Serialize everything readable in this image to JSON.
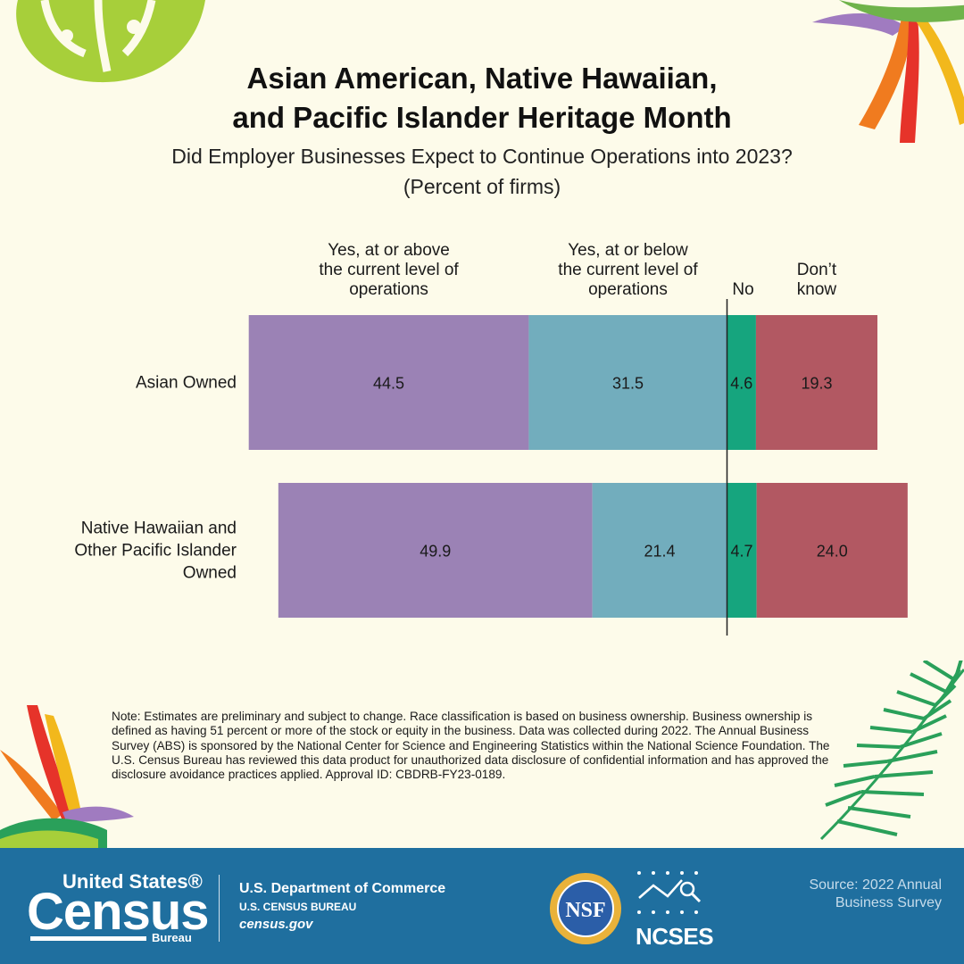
{
  "title": {
    "line1": "Asian American, Native Hawaiian,",
    "line2": "and Pacific Islander Heritage Month"
  },
  "subtitle": {
    "line1": "Did Employer Businesses Expect to Continue Operations into 2023?",
    "line2": "(Percent of firms)"
  },
  "chart_data": {
    "type": "bar",
    "orientation": "horizontal-stacked",
    "categories": [
      "Asian Owned",
      "Native Hawaiian and Other Pacific Islander Owned"
    ],
    "category_lines": [
      [
        "Asian Owned"
      ],
      [
        "Native Hawaiian and",
        "Other Pacific Islander",
        "Owned"
      ]
    ],
    "series": [
      {
        "name": "Yes, at or above the current level of operations",
        "name_lines": [
          "Yes, at or above",
          "the current level of",
          "operations"
        ],
        "values": [
          44.5,
          49.9
        ],
        "color": "#9b82b5"
      },
      {
        "name": "Yes, at or below the current level of operations",
        "name_lines": [
          "Yes, at or below",
          "the current level of",
          "operations"
        ],
        "values": [
          31.5,
          21.4
        ],
        "color": "#72adbd"
      },
      {
        "name": "No",
        "name_lines": [
          "No"
        ],
        "values": [
          4.6,
          4.7
        ],
        "color": "#16a57e"
      },
      {
        "name": "Don’t know",
        "name_lines": [
          "Don’t",
          "know"
        ],
        "values": [
          19.3,
          24.0
        ],
        "color": "#b25862"
      }
    ],
    "value_labels": [
      [
        "44.5",
        "31.5",
        "4.6",
        "19.3"
      ],
      [
        "49.9",
        "21.4",
        "4.7",
        "24.0"
      ]
    ],
    "xlim": [
      0,
      100
    ],
    "legend": "top",
    "grid": false
  },
  "note": "Note: Estimates are preliminary and subject to change. Race classification is based on business ownership. Business ownership is defined as having 51 percent or more of the stock or equity in the business. Data was collected during 2022. The Annual Business Survey (ABS) is sponsored by the National Center for Science and Engineering Statistics within the National Science Foundation. The U.S. Census Bureau has reviewed this data product for unauthorized data disclosure of confidential information and has approved the disclosure avoidance practices applied. Approval ID: CBDRB-FY23-0189.",
  "footer": {
    "census_line1": "United States®",
    "census_line2": "Census",
    "census_line3": "Bureau",
    "dept1": "U.S. Department of Commerce",
    "dept2": "U.S. CENSUS BUREAU",
    "dept3": "census.gov",
    "nsf_label": "NSF",
    "ncses_label": "NCSES",
    "source_line1": "Source: 2022 Annual",
    "source_line2": "Business Survey"
  },
  "colors": {
    "background": "#fdfbea",
    "footer": "#1f6f9f"
  },
  "icons": [
    "monstera-leaf-icon",
    "bird-of-paradise-flower-icon",
    "palm-leaf-icon",
    "nsf-logo-icon",
    "ncses-logo-icon"
  ]
}
